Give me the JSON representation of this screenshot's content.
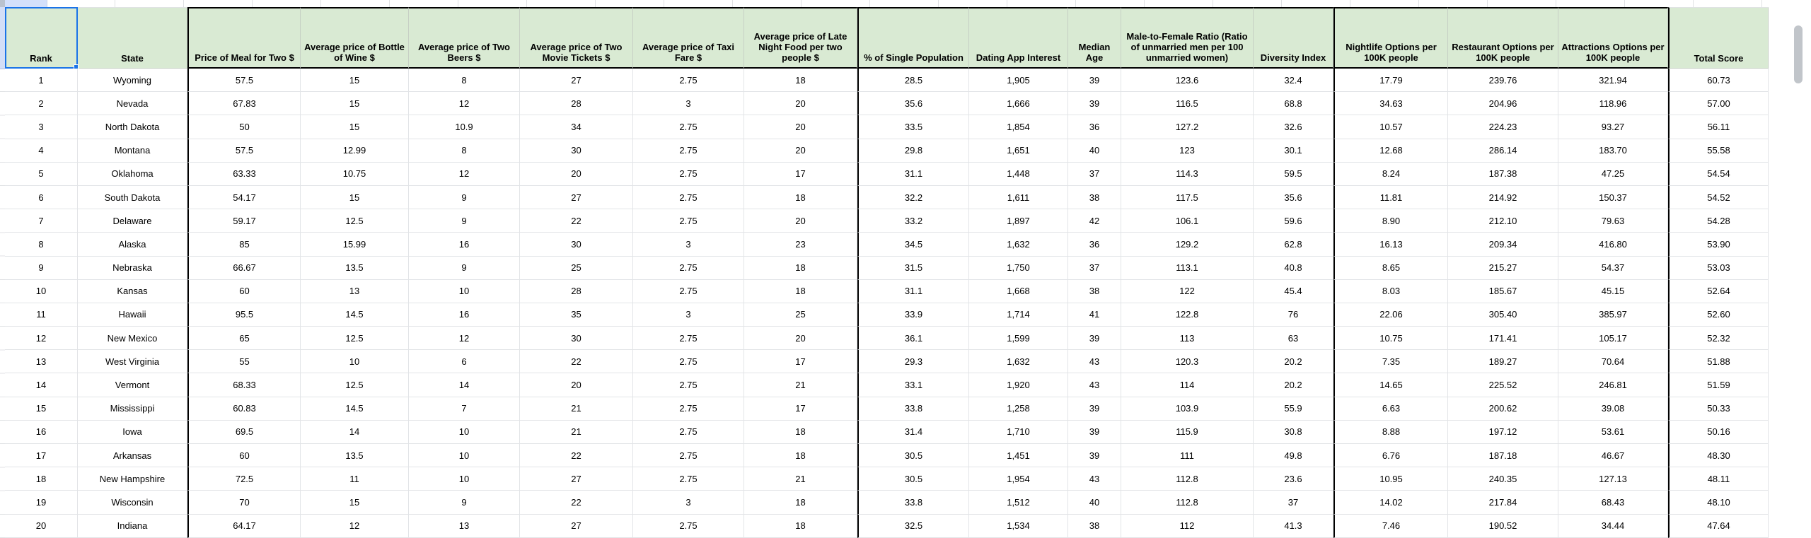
{
  "sheet": {
    "selected_header_cell": "Rank",
    "header_bg_color": "#d9ead3",
    "selection_color": "#1a73e8",
    "group_border_color": "#000000"
  },
  "columns": [
    "Rank",
    "State",
    "Price of Meal for Two $",
    "Average price of Bottle of Wine $",
    "Average price of Two Beers $",
    "Average price of Two Movie Tickets $",
    "Average price of Taxi Fare $",
    "Average price of Late Night Food per two people $",
    "% of Single Population",
    "Dating App Interest",
    "Median Age",
    "Male-to-Female Ratio (Ratio of unmarried men per 100 unmarried women)",
    "Diversity Index",
    "Nightlife Options per 100K people",
    "Restaurant Options per 100K people",
    "Attractions Options per 100K people",
    "Total Score"
  ],
  "rows": [
    [
      "1",
      "Wyoming",
      "57.5",
      "15",
      "8",
      "27",
      "2.75",
      "18",
      "28.5",
      "1,905",
      "39",
      "123.6",
      "32.4",
      "17.79",
      "239.76",
      "321.94",
      "60.73"
    ],
    [
      "2",
      "Nevada",
      "67.83",
      "15",
      "12",
      "28",
      "3",
      "20",
      "35.6",
      "1,666",
      "39",
      "116.5",
      "68.8",
      "34.63",
      "204.96",
      "118.96",
      "57.00"
    ],
    [
      "3",
      "North Dakota",
      "50",
      "15",
      "10.9",
      "34",
      "2.75",
      "20",
      "33.5",
      "1,854",
      "36",
      "127.2",
      "32.6",
      "10.57",
      "224.23",
      "93.27",
      "56.11"
    ],
    [
      "4",
      "Montana",
      "57.5",
      "12.99",
      "8",
      "30",
      "2.75",
      "20",
      "29.8",
      "1,651",
      "40",
      "123",
      "30.1",
      "12.68",
      "286.14",
      "183.70",
      "55.58"
    ],
    [
      "5",
      "Oklahoma",
      "63.33",
      "10.75",
      "12",
      "20",
      "2.75",
      "17",
      "31.1",
      "1,448",
      "37",
      "114.3",
      "59.5",
      "8.24",
      "187.38",
      "47.25",
      "54.54"
    ],
    [
      "6",
      "South Dakota",
      "54.17",
      "15",
      "9",
      "27",
      "2.75",
      "18",
      "32.2",
      "1,611",
      "38",
      "117.5",
      "35.6",
      "11.81",
      "214.92",
      "150.37",
      "54.52"
    ],
    [
      "7",
      "Delaware",
      "59.17",
      "12.5",
      "9",
      "22",
      "2.75",
      "20",
      "33.2",
      "1,897",
      "42",
      "106.1",
      "59.6",
      "8.90",
      "212.10",
      "79.63",
      "54.28"
    ],
    [
      "8",
      "Alaska",
      "85",
      "15.99",
      "16",
      "30",
      "3",
      "23",
      "34.5",
      "1,632",
      "36",
      "129.2",
      "62.8",
      "16.13",
      "209.34",
      "416.80",
      "53.90"
    ],
    [
      "9",
      "Nebraska",
      "66.67",
      "13.5",
      "9",
      "25",
      "2.75",
      "18",
      "31.5",
      "1,750",
      "37",
      "113.1",
      "40.8",
      "8.65",
      "215.27",
      "54.37",
      "53.03"
    ],
    [
      "10",
      "Kansas",
      "60",
      "13",
      "10",
      "28",
      "2.75",
      "18",
      "31.1",
      "1,668",
      "38",
      "122",
      "45.4",
      "8.03",
      "185.67",
      "45.15",
      "52.64"
    ],
    [
      "11",
      "Hawaii",
      "95.5",
      "14.5",
      "16",
      "35",
      "3",
      "25",
      "33.9",
      "1,714",
      "41",
      "122.8",
      "76",
      "22.06",
      "305.40",
      "385.97",
      "52.60"
    ],
    [
      "12",
      "New Mexico",
      "65",
      "12.5",
      "12",
      "30",
      "2.75",
      "20",
      "36.1",
      "1,599",
      "39",
      "113",
      "63",
      "10.75",
      "171.41",
      "105.17",
      "52.32"
    ],
    [
      "13",
      "West Virginia",
      "55",
      "10",
      "6",
      "22",
      "2.75",
      "17",
      "29.3",
      "1,632",
      "43",
      "120.3",
      "20.2",
      "7.35",
      "189.27",
      "70.64",
      "51.88"
    ],
    [
      "14",
      "Vermont",
      "68.33",
      "12.5",
      "14",
      "20",
      "2.75",
      "21",
      "33.1",
      "1,920",
      "43",
      "114",
      "20.2",
      "14.65",
      "225.52",
      "246.81",
      "51.59"
    ],
    [
      "15",
      "Mississippi",
      "60.83",
      "14.5",
      "7",
      "21",
      "2.75",
      "17",
      "33.8",
      "1,258",
      "39",
      "103.9",
      "55.9",
      "6.63",
      "200.62",
      "39.08",
      "50.33"
    ],
    [
      "16",
      "Iowa",
      "69.5",
      "14",
      "10",
      "21",
      "2.75",
      "18",
      "31.4",
      "1,710",
      "39",
      "115.9",
      "30.8",
      "8.88",
      "197.12",
      "53.61",
      "50.16"
    ],
    [
      "17",
      "Arkansas",
      "60",
      "13.5",
      "10",
      "22",
      "2.75",
      "18",
      "30.5",
      "1,451",
      "39",
      "111",
      "49.8",
      "6.76",
      "187.18",
      "46.67",
      "48.30"
    ],
    [
      "18",
      "New Hampshire",
      "72.5",
      "11",
      "10",
      "27",
      "2.75",
      "21",
      "30.5",
      "1,954",
      "43",
      "112.8",
      "23.6",
      "10.95",
      "240.35",
      "127.13",
      "48.11"
    ],
    [
      "19",
      "Wisconsin",
      "70",
      "15",
      "9",
      "22",
      "3",
      "18",
      "33.8",
      "1,512",
      "40",
      "112.8",
      "37",
      "14.02",
      "217.84",
      "68.43",
      "48.10"
    ],
    [
      "20",
      "Indiana",
      "64.17",
      "12",
      "13",
      "27",
      "2.75",
      "18",
      "32.5",
      "1,534",
      "38",
      "112",
      "41.3",
      "7.46",
      "190.52",
      "34.44",
      "47.64"
    ]
  ]
}
